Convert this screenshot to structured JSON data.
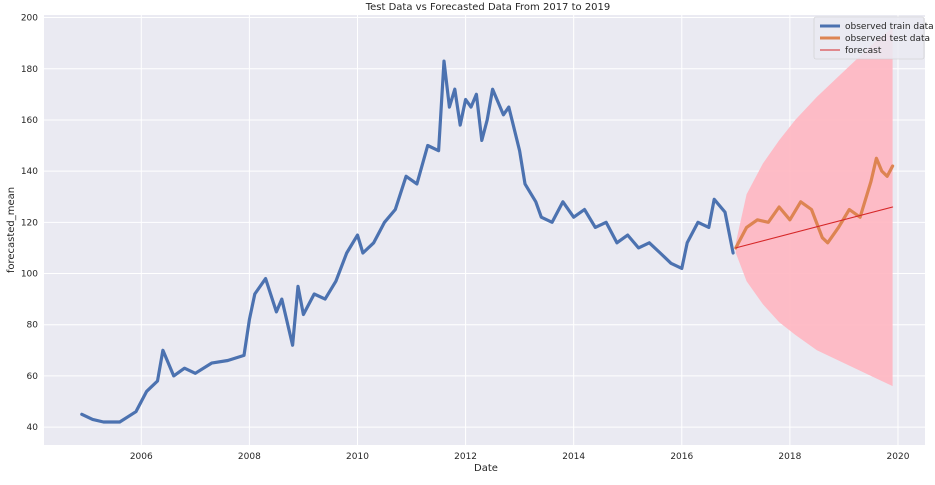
{
  "chart_data": {
    "type": "line",
    "title": "Test Data vs Forecasted Data From 2017 to 2019",
    "xlabel": "Date",
    "ylabel": "forecasted_mean",
    "xlim": [
      2004.2,
      2020.5
    ],
    "ylim": [
      33,
      201
    ],
    "x_ticks": [
      "2006",
      "2008",
      "2010",
      "2012",
      "2014",
      "2016",
      "2018",
      "2020"
    ],
    "y_ticks": [
      "40",
      "60",
      "80",
      "100",
      "120",
      "140",
      "160",
      "180",
      "200"
    ],
    "grid": true,
    "legend_position": "top-right",
    "colors": {
      "background": "#eaeaf2",
      "grid": "#ffffff",
      "train": "#4c72b0",
      "test": "#dd8452",
      "forecast": "#d62728",
      "ci": "#ffb6c1"
    },
    "series": [
      {
        "name": "observed train data",
        "x": [
          2004.9,
          2005.1,
          2005.3,
          2005.6,
          2005.9,
          2006.1,
          2006.3,
          2006.4,
          2006.6,
          2006.8,
          2007.0,
          2007.3,
          2007.6,
          2007.9,
          2008.0,
          2008.1,
          2008.3,
          2008.5,
          2008.6,
          2008.8,
          2008.9,
          2009.0,
          2009.2,
          2009.4,
          2009.6,
          2009.8,
          2010.0,
          2010.1,
          2010.3,
          2010.5,
          2010.7,
          2010.9,
          2011.1,
          2011.3,
          2011.5,
          2011.6,
          2011.7,
          2011.8,
          2011.9,
          2012.0,
          2012.1,
          2012.2,
          2012.3,
          2012.4,
          2012.5,
          2012.7,
          2012.8,
          2013.0,
          2013.1,
          2013.3,
          2013.4,
          2013.6,
          2013.8,
          2014.0,
          2014.2,
          2014.4,
          2014.6,
          2014.8,
          2015.0,
          2015.2,
          2015.4,
          2015.6,
          2015.8,
          2016.0,
          2016.1,
          2016.3,
          2016.5,
          2016.6,
          2016.8,
          2016.95
        ],
        "values": [
          45,
          43,
          42,
          42,
          46,
          54,
          58,
          70,
          60,
          63,
          61,
          65,
          66,
          68,
          82,
          92,
          98,
          85,
          90,
          72,
          95,
          84,
          92,
          90,
          97,
          108,
          115,
          108,
          112,
          120,
          125,
          138,
          135,
          150,
          148,
          183,
          165,
          172,
          158,
          168,
          165,
          170,
          152,
          160,
          172,
          162,
          165,
          148,
          135,
          128,
          122,
          120,
          128,
          122,
          125,
          118,
          120,
          112,
          115,
          110,
          112,
          108,
          104,
          102,
          112,
          120,
          118,
          129,
          124,
          108
        ]
      },
      {
        "name": "observed test data",
        "x": [
          2017.0,
          2017.2,
          2017.4,
          2017.6,
          2017.8,
          2018.0,
          2018.2,
          2018.4,
          2018.6,
          2018.7,
          2018.9,
          2019.1,
          2019.3,
          2019.5,
          2019.6,
          2019.7,
          2019.8,
          2019.9
        ],
        "values": [
          110,
          118,
          121,
          120,
          126,
          121,
          128,
          125,
          114,
          112,
          118,
          125,
          122,
          136,
          145,
          140,
          138,
          142
        ]
      },
      {
        "name": "forecast",
        "x": [
          2017.0,
          2019.9
        ],
        "values": [
          110,
          126
        ]
      }
    ],
    "confidence_interval": {
      "x": [
        2017.0,
        2017.2,
        2017.5,
        2017.8,
        2018.1,
        2018.5,
        2018.9,
        2019.3,
        2019.6,
        2019.9
      ],
      "lower": [
        108,
        97,
        88,
        81,
        76,
        70,
        66,
        62,
        59,
        56
      ],
      "upper": [
        112,
        131,
        143,
        152,
        160,
        169,
        177,
        185,
        191,
        196
      ]
    }
  }
}
